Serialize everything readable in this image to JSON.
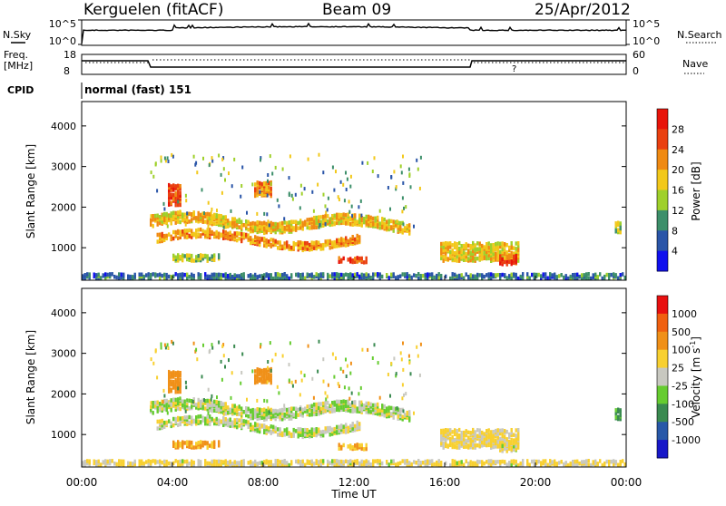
{
  "header": {
    "station": "Kerguelen (fitACF)",
    "beam": "Beam 09",
    "date": "25/Apr/2012"
  },
  "top_panels": {
    "nsky_label": "N.Sky",
    "nsearch_label": "N.Search",
    "noise_ticks": [
      "10^5",
      "10^0"
    ],
    "freq_label_1": "Freq.",
    "freq_label_2": "[MHz]",
    "freq_ticks": [
      "18",
      "8"
    ],
    "nave_label": "Nave",
    "nave_ticks": [
      "60",
      "0"
    ],
    "cpid_label": "CPID",
    "cpid_value": "normal (fast) 151",
    "qmark": "?"
  },
  "chart_data": [
    {
      "type": "heatmap",
      "title": "",
      "quantity": "Power",
      "ylabel": "Slant Range [km]",
      "xlabel": "",
      "xlim": [
        "00:00",
        "24:00"
      ],
      "ylim": [
        200,
        4600
      ],
      "yticks": [
        "1000",
        "2000",
        "3000",
        "4000"
      ],
      "colorbar": {
        "label": "Power [dB]",
        "ticks": [
          "4",
          "8",
          "12",
          "16",
          "20",
          "24",
          "28"
        ],
        "colors": [
          "#1010ee",
          "#2a55a8",
          "#3d8f6a",
          "#9fd02a",
          "#f2c81a",
          "#f08a12",
          "#ea4010",
          "#e8140a"
        ]
      },
      "bands": [
        {
          "start_h": 3.0,
          "end_h": 14.4,
          "center_km": 1650,
          "thickness_km": 260,
          "power_db": 19,
          "velocity_ms": 10
        },
        {
          "start_h": 3.3,
          "end_h": 12.2,
          "center_km": 1200,
          "thickness_km": 200,
          "power_db": 21,
          "velocity_ms": 5
        },
        {
          "start_h": 4.0,
          "end_h": 6.0,
          "center_km": 750,
          "thickness_km": 150,
          "power_db": 14,
          "velocity_ms": -120
        },
        {
          "start_h": 3.8,
          "end_h": 4.3,
          "center_km": 2300,
          "thickness_km": 500,
          "power_db": 27,
          "velocity_ms": -350
        },
        {
          "start_h": 7.6,
          "end_h": 8.3,
          "center_km": 2450,
          "thickness_km": 350,
          "power_db": 22,
          "velocity_ms": -200
        },
        {
          "start_h": 11.3,
          "end_h": 12.5,
          "center_km": 700,
          "thickness_km": 130,
          "power_db": 26,
          "velocity_ms": -90
        },
        {
          "start_h": 15.8,
          "end_h": 19.3,
          "center_km": 900,
          "thickness_km": 450,
          "power_db": 18,
          "velocity_ms": -40
        },
        {
          "start_h": 18.4,
          "end_h": 19.2,
          "center_km": 700,
          "thickness_km": 220,
          "power_db": 27,
          "velocity_ms": -20
        },
        {
          "start_h": 23.5,
          "end_h": 23.8,
          "center_km": 1500,
          "thickness_km": 250,
          "power_db": 15,
          "velocity_ms": 150
        },
        {
          "start_h": 0.0,
          "end_h": 24.0,
          "center_km": 300,
          "thickness_km": 120,
          "power_db": 8,
          "velocity_ms": -30
        }
      ]
    },
    {
      "type": "heatmap",
      "title": "",
      "quantity": "Velocity",
      "ylabel": "Slant Range [km]",
      "xlabel": "Time UT",
      "xlim": [
        "00:00",
        "24:00"
      ],
      "xticks": [
        "00:00",
        "04:00",
        "08:00",
        "12:00",
        "16:00",
        "20:00",
        "00:00"
      ],
      "ylim": [
        200,
        4600
      ],
      "yticks": [
        "1000",
        "2000",
        "3000",
        "4000"
      ],
      "colorbar": {
        "label_main": "Velocity ",
        "label_unit": "[m s",
        "label_sup": "-1",
        "label_close": "]",
        "ticks": [
          "1000",
          "500",
          "100",
          "25",
          "-25",
          "-100",
          "-500",
          "-1000"
        ],
        "colors": [
          "#1818c8",
          "#2858a8",
          "#3a8a50",
          "#66cc30",
          "#c8c8c0",
          "#f8d030",
          "#f09018",
          "#f06010",
          "#e81010"
        ]
      }
    }
  ]
}
